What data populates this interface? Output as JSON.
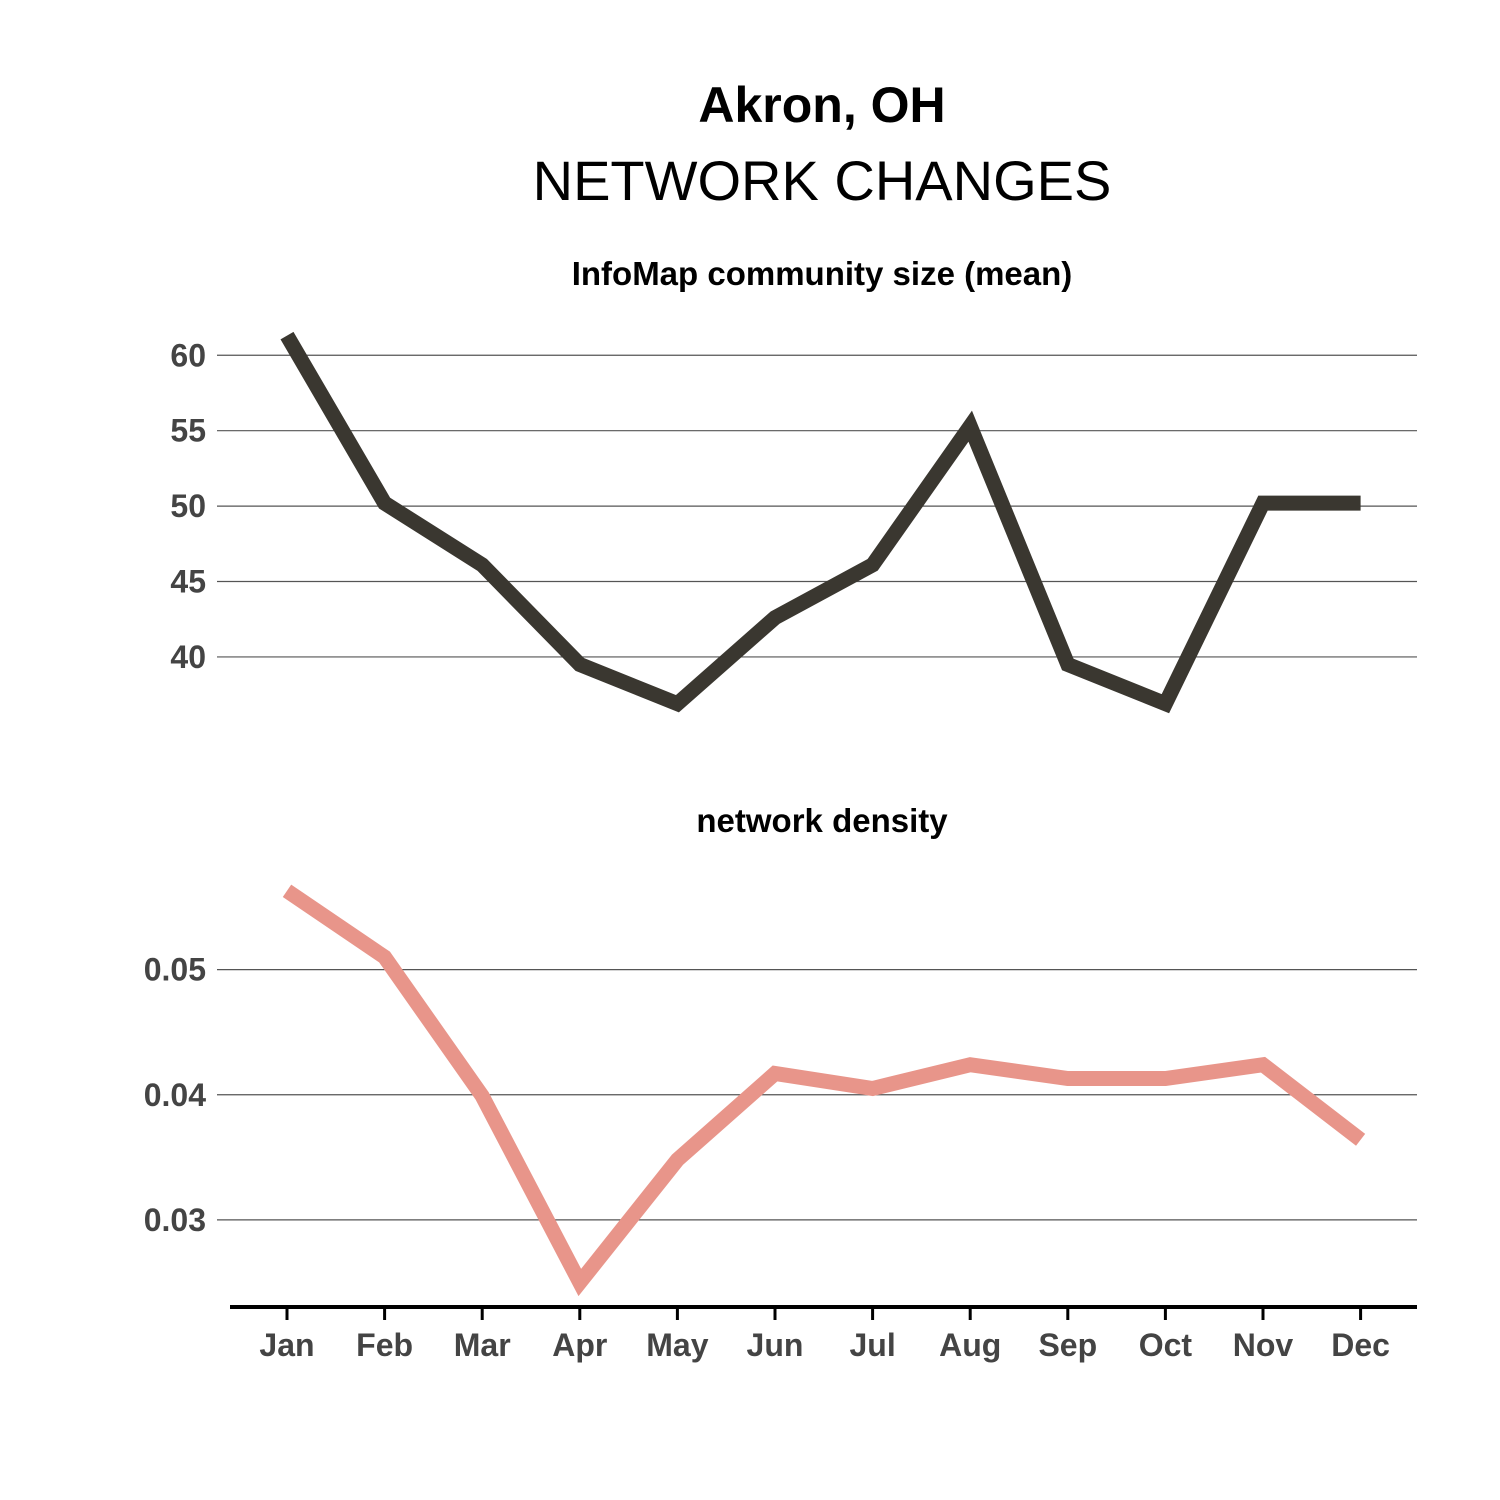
{
  "figure": {
    "title_city": "Akron, OH",
    "title_main": "NETWORK CHANGES"
  },
  "chart_data": [
    {
      "type": "line",
      "title": "InfoMap community size (mean)",
      "categories": [
        "Jan",
        "Feb",
        "Mar",
        "Apr",
        "May",
        "Jun",
        "Jul",
        "Aug",
        "Sep",
        "Oct",
        "Nov",
        "Dec"
      ],
      "series": [
        {
          "values": [
            61.3,
            50.2,
            46.1,
            39.5,
            36.9,
            42.6,
            46.1,
            55.3,
            39.5,
            36.9,
            50.2,
            50.2
          ],
          "color": "#3a3730"
        }
      ],
      "yticks": [
        40,
        45,
        50,
        55,
        60
      ],
      "ylim": [
        33.5,
        63
      ],
      "grid": true,
      "xlabel": "",
      "ylabel": ""
    },
    {
      "type": "line",
      "title": "network density",
      "categories": [
        "Jan",
        "Feb",
        "Mar",
        "Apr",
        "May",
        "Jun",
        "Jul",
        "Aug",
        "Sep",
        "Oct",
        "Nov",
        "Dec"
      ],
      "series": [
        {
          "values": [
            0.0563,
            0.051,
            0.0399,
            0.025,
            0.0348,
            0.0417,
            0.0405,
            0.0424,
            0.0413,
            0.0413,
            0.0424,
            0.0364
          ],
          "color": "#e8958a"
        }
      ],
      "yticks": [
        "0.03",
        "0.04",
        "0.05"
      ],
      "ylim": [
        0.0236,
        0.0594
      ],
      "grid": true,
      "xlabel": "",
      "ylabel": ""
    }
  ]
}
